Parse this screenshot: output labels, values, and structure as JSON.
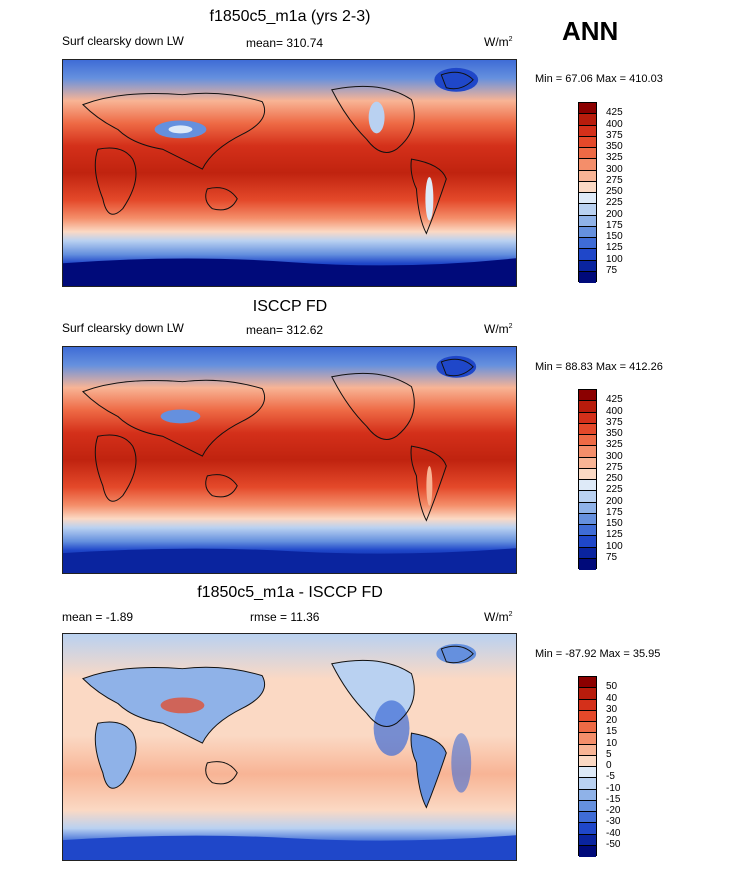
{
  "header": {
    "season": "ANN"
  },
  "panels": [
    {
      "title": "f1850c5_m1a (yrs 2-3)",
      "left_label": "Surf clearsky down LW",
      "mid_label": "mean= 310.74",
      "units_base": "W/m",
      "units_exp": "2",
      "minmax": "Min =  67.06 Max = 410.03",
      "colorbar": {
        "labels": [
          "425",
          "400",
          "375",
          "350",
          "325",
          "300",
          "275",
          "250",
          "225",
          "200",
          "175",
          "150",
          "125",
          "100",
          "75"
        ],
        "colors": [
          "#8b0000",
          "#b81c0c",
          "#d4301a",
          "#e4492a",
          "#ee6a45",
          "#f48e6a",
          "#f8b495",
          "#fbd9c4",
          "#deeaf8",
          "#b9d1f1",
          "#8fb2e8",
          "#6590de",
          "#3f6cd6",
          "#1f47c9",
          "#0a249f",
          "#000a7a"
        ]
      }
    },
    {
      "title": "ISCCP FD",
      "left_label": "Surf clearsky down LW",
      "mid_label": "mean= 312.62",
      "units_base": "W/m",
      "units_exp": "2",
      "minmax": "Min =  88.83 Max = 412.26",
      "colorbar": {
        "labels": [
          "425",
          "400",
          "375",
          "350",
          "325",
          "300",
          "275",
          "250",
          "225",
          "200",
          "175",
          "150",
          "125",
          "100",
          "75"
        ],
        "colors": [
          "#8b0000",
          "#b81c0c",
          "#d4301a",
          "#e4492a",
          "#ee6a45",
          "#f48e6a",
          "#f8b495",
          "#fbd9c4",
          "#deeaf8",
          "#b9d1f1",
          "#8fb2e8",
          "#6590de",
          "#3f6cd6",
          "#1f47c9",
          "#0a249f",
          "#000a7a"
        ]
      }
    },
    {
      "title": "f1850c5_m1a - ISCCP FD",
      "left_label": "mean =  -1.89",
      "mid_label": "rmse =  11.36",
      "units_base": "W/m",
      "units_exp": "2",
      "minmax": "Min = -87.92 Max =  35.95",
      "colorbar": {
        "labels": [
          "50",
          "40",
          "30",
          "20",
          "15",
          "10",
          "5",
          "0",
          "-5",
          "-10",
          "-15",
          "-20",
          "-30",
          "-40",
          "-50"
        ],
        "colors": [
          "#8b0000",
          "#b81c0c",
          "#d4301a",
          "#e4492a",
          "#ee6a45",
          "#f48e6a",
          "#f8b495",
          "#fbd9c4",
          "#deeaf8",
          "#b9d1f1",
          "#8fb2e8",
          "#6590de",
          "#3f6cd6",
          "#1f47c9",
          "#0a249f",
          "#000a7a"
        ]
      }
    }
  ]
}
